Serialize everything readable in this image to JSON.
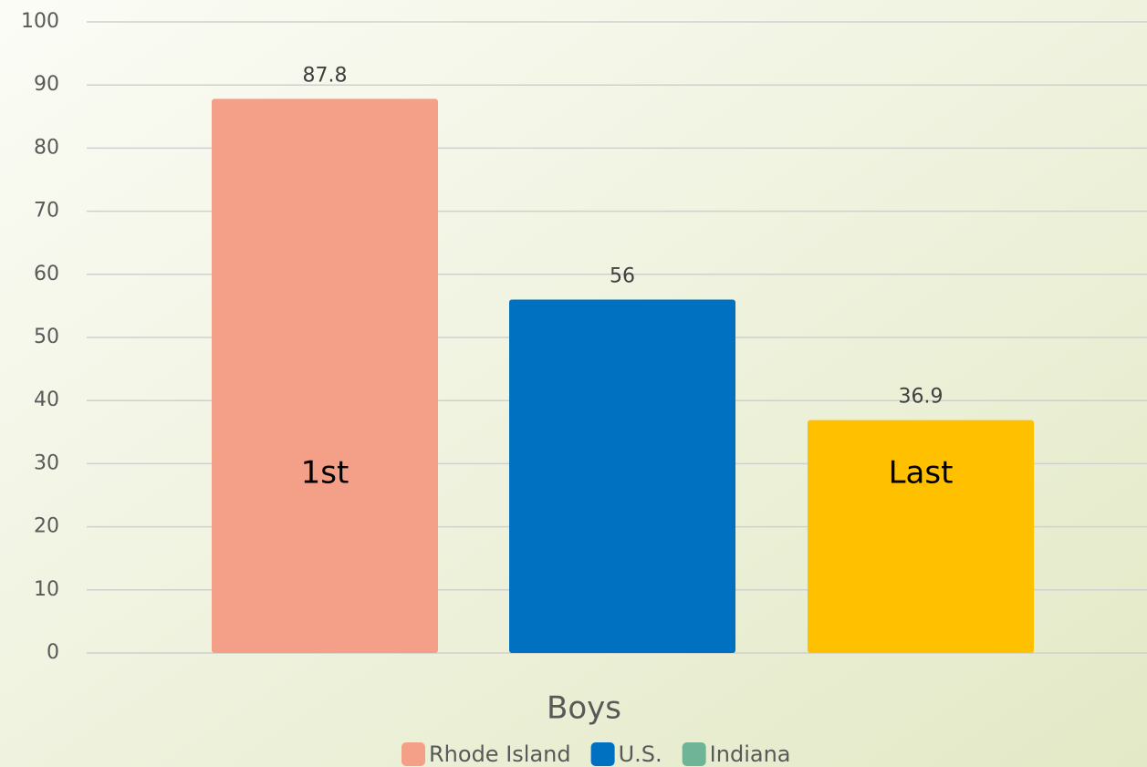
{
  "chart_data": {
    "type": "bar",
    "categories": [
      "Boys"
    ],
    "series": [
      {
        "name": "Rhode Island",
        "color": "#f4a088",
        "values": [
          87.8
        ]
      },
      {
        "name": "U.S.",
        "color": "#0070c0",
        "values": [
          56
        ]
      },
      {
        "name": "Indiana",
        "color": "#ffc000",
        "values": [
          36.9
        ]
      }
    ],
    "legend": {
      "colors": [
        "#f4a088",
        "#0070c0",
        "#70b498"
      ],
      "position": "bottom"
    },
    "annotations": [
      {
        "series": 0,
        "text": "1st"
      },
      {
        "series": 2,
        "text": "Last"
      }
    ],
    "ylim": [
      0,
      100
    ],
    "yticks": [
      0,
      10,
      20,
      30,
      40,
      50,
      60,
      70,
      80,
      90,
      100
    ],
    "grid": true
  }
}
